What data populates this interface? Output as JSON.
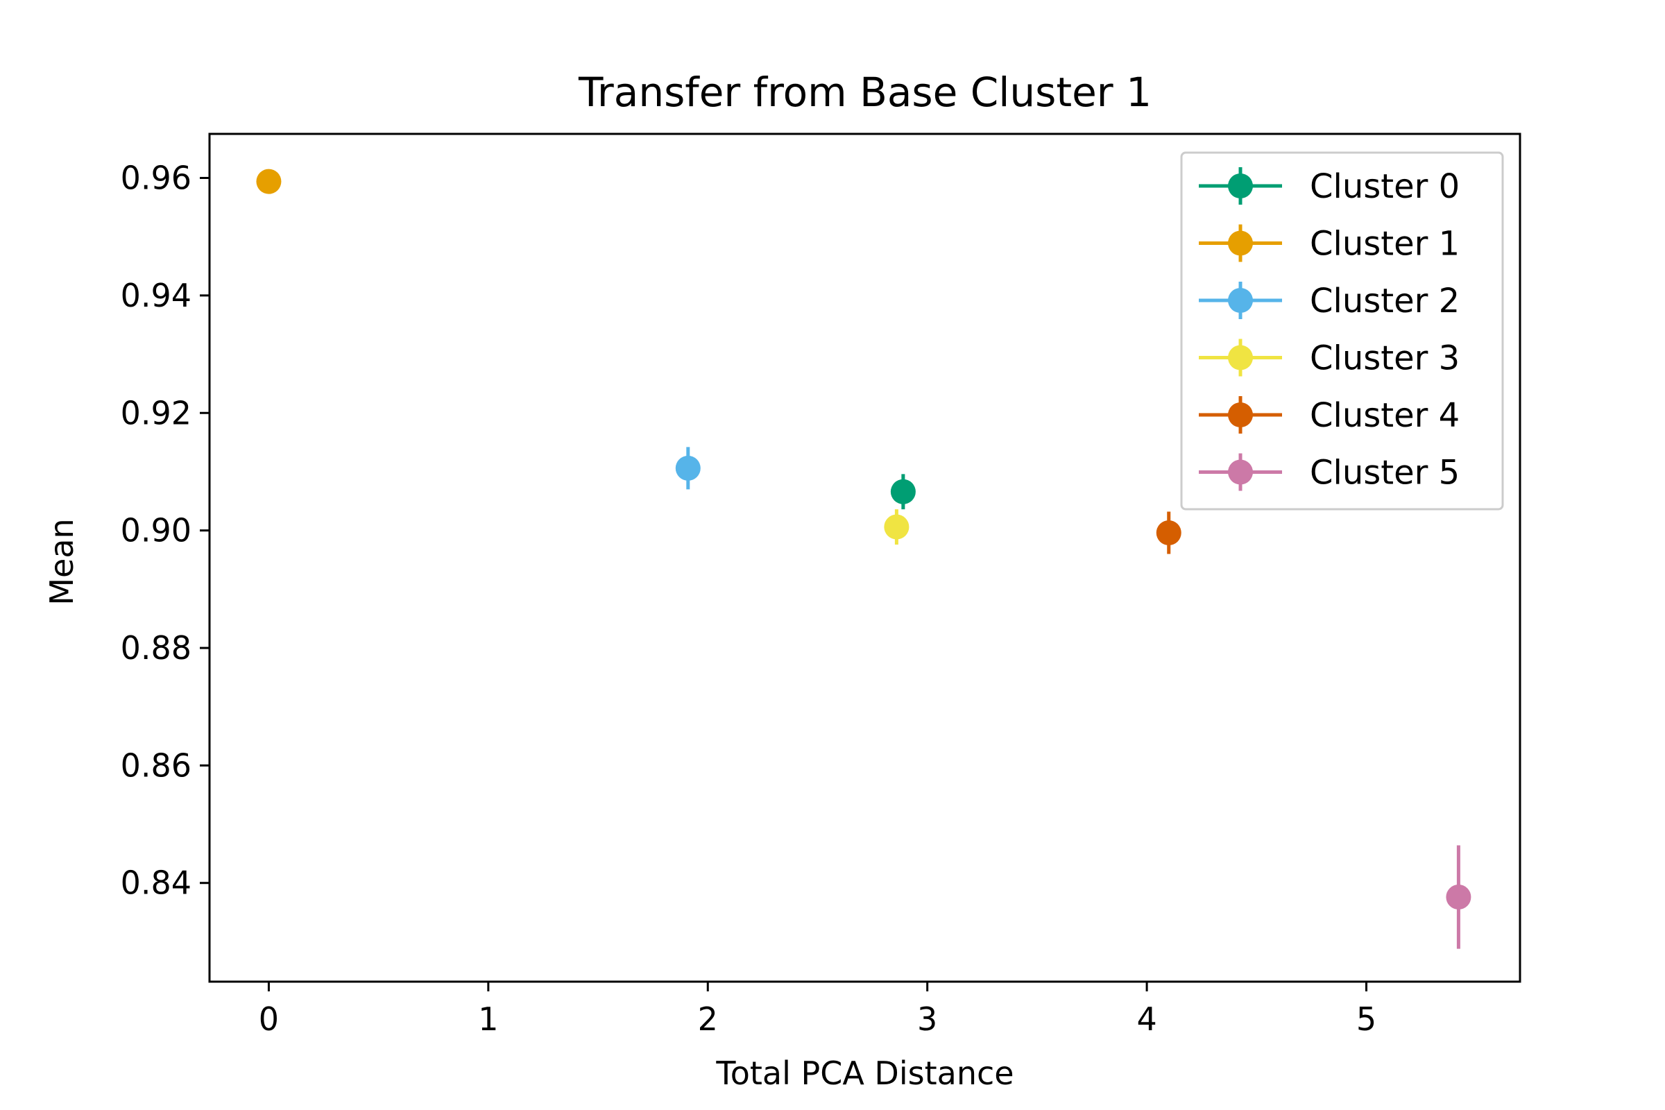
{
  "chart_data": {
    "type": "scatter",
    "title": "Transfer from Base Cluster 1",
    "xlabel": "Total PCA Distance",
    "ylabel": "Mean",
    "xlim": [
      -0.27,
      5.7
    ],
    "ylim": [
      0.8232,
      0.9675
    ],
    "xticks": [
      0,
      1,
      2,
      3,
      4,
      5
    ],
    "yticks": [
      0.84,
      0.86,
      0.88,
      0.9,
      0.92,
      0.94,
      0.96
    ],
    "ytick_labels": [
      "0.84",
      "0.86",
      "0.88",
      "0.90",
      "0.92",
      "0.94",
      "0.96"
    ],
    "grid": false,
    "legend_position": "top-right",
    "series": [
      {
        "name": "Cluster 0",
        "color": "#009e73",
        "x": 2.89,
        "y": 0.9066,
        "yerr": 0.003
      },
      {
        "name": "Cluster 1",
        "color": "#e69f00",
        "x": 0.0,
        "y": 0.9594,
        "yerr": 0.0
      },
      {
        "name": "Cluster 2",
        "color": "#56b4e9",
        "x": 1.91,
        "y": 0.9106,
        "yerr": 0.0036
      },
      {
        "name": "Cluster 3",
        "color": "#f0e442",
        "x": 2.86,
        "y": 0.9006,
        "yerr": 0.003
      },
      {
        "name": "Cluster 4",
        "color": "#d55e00",
        "x": 4.1,
        "y": 0.8996,
        "yerr": 0.0036
      },
      {
        "name": "Cluster 5",
        "color": "#cc79a7",
        "x": 5.42,
        "y": 0.8376,
        "yerr": 0.0088
      }
    ]
  }
}
